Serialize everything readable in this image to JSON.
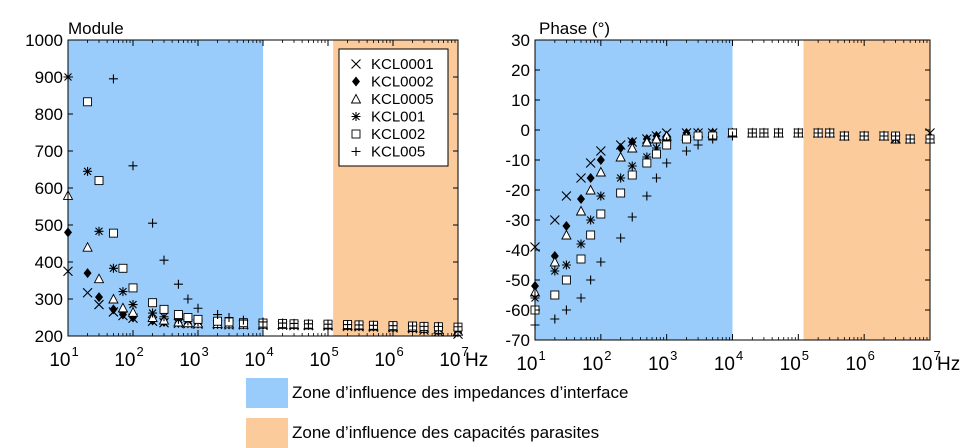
{
  "colors": {
    "interface_zone": "#99ccfb",
    "parasitic_zone": "#fbcb9b",
    "frame": "#000000",
    "marker": "#000000"
  },
  "zone_legend": [
    {
      "label": "Zone d’influence des impedances d’interface",
      "color": "#99ccfb",
      "from_hz": 10,
      "to_hz": 10000
    },
    {
      "label": "Zone d’influence des capacités parasites",
      "color": "#fbcb9b",
      "from_hz": 120000,
      "to_hz": 10000000
    }
  ],
  "chart_data": [
    {
      "type": "scatter",
      "title": "Module",
      "xlabel": "Hz",
      "ylabel": "",
      "xscale": "log",
      "xlim": [
        10,
        10000000
      ],
      "ylim": [
        200,
        1000
      ],
      "xticks": [
        {
          "exp": "1"
        },
        {
          "exp": "2"
        },
        {
          "exp": "3"
        },
        {
          "exp": "4"
        },
        {
          "exp": "5"
        },
        {
          "exp": "6"
        },
        {
          "exp": "7"
        }
      ],
      "yticks": [
        "200",
        "300",
        "400",
        "500",
        "600",
        "700",
        "800",
        "900",
        "1000"
      ],
      "legend_position": "top-right",
      "series": [
        {
          "name": "KCL0001",
          "marker": "x",
          "x": [
            10,
            20,
            30,
            50,
            70,
            100,
            200,
            300,
            500,
            700,
            1000,
            2000,
            3000,
            5000,
            10000,
            20000,
            30000,
            50000,
            100000,
            200000,
            300000,
            500000,
            1000000,
            2000000,
            3000000,
            5000000,
            10000000
          ],
          "y": [
            375,
            317,
            285,
            265,
            255,
            248,
            240,
            236,
            234,
            233,
            232,
            231,
            230,
            230,
            229,
            229,
            228,
            228,
            227,
            226,
            225,
            224,
            222,
            220,
            216,
            212,
            205
          ]
        },
        {
          "name": "KCL0002",
          "marker": "diamond",
          "x": [
            10,
            20,
            30,
            50,
            70,
            100,
            200,
            300,
            500,
            700,
            1000,
            2000,
            3000,
            5000,
            10000,
            20000,
            30000,
            50000,
            100000,
            200000,
            300000,
            500000,
            1000000,
            2000000,
            3000000,
            5000000,
            10000000
          ],
          "y": [
            480,
            370,
            305,
            272,
            258,
            250,
            242,
            238,
            235,
            234,
            233,
            232,
            231,
            231,
            230,
            230,
            229,
            229,
            228,
            227,
            226,
            225,
            223,
            221,
            218,
            214,
            210
          ]
        },
        {
          "name": "KCL0005",
          "marker": "triangle",
          "x": [
            10,
            20,
            30,
            50,
            70,
            100,
            200,
            300,
            500,
            700,
            1000,
            2000,
            3000,
            5000,
            10000,
            20000,
            30000,
            50000,
            100000,
            200000,
            300000,
            500000,
            1000000,
            2000000,
            3000000,
            5000000,
            10000000
          ],
          "y": [
            580,
            440,
            355,
            300,
            276,
            264,
            250,
            243,
            238,
            236,
            235,
            234,
            233,
            232,
            232,
            231,
            231,
            230,
            230,
            229,
            228,
            227,
            225,
            223,
            221,
            218,
            213
          ]
        },
        {
          "name": "KCL001",
          "marker": "asterisk",
          "x": [
            10,
            20,
            30,
            50,
            70,
            100,
            200,
            300,
            500,
            700,
            1000,
            2000,
            3000,
            5000,
            10000,
            20000,
            30000,
            50000,
            100000,
            200000,
            300000,
            500000,
            1000000,
            2000000,
            3000000,
            5000000,
            10000000
          ],
          "y": [
            900,
            645,
            483,
            383,
            320,
            285,
            262,
            252,
            245,
            241,
            239,
            237,
            235,
            234,
            233,
            233,
            232,
            231,
            231,
            230,
            229,
            228,
            226,
            224,
            222,
            219,
            215
          ]
        },
        {
          "name": "KCL002",
          "marker": "square",
          "x": [
            20,
            30,
            50,
            70,
            100,
            200,
            300,
            500,
            700,
            1000,
            2000,
            3000,
            5000,
            10000,
            20000,
            30000,
            50000,
            100000,
            200000,
            300000,
            500000,
            1000000,
            2000000,
            3000000,
            5000000,
            10000000
          ],
          "y": [
            833,
            620,
            478,
            383,
            330,
            290,
            272,
            258,
            250,
            245,
            240,
            238,
            236,
            235,
            234,
            233,
            232,
            232,
            231,
            230,
            229,
            228,
            227,
            226,
            225,
            224
          ]
        },
        {
          "name": "KCL005",
          "marker": "plus",
          "x": [
            50,
            100,
            200,
            300,
            500,
            700,
            1000,
            2000,
            3000,
            5000,
            10000,
            20000,
            30000,
            50000,
            100000,
            200000,
            300000,
            500000,
            1000000,
            2000000,
            3000000,
            5000000,
            10000000
          ],
          "y": [
            895,
            660,
            505,
            405,
            340,
            300,
            275,
            258,
            250,
            243,
            238,
            235,
            234,
            233,
            232,
            231,
            230,
            229,
            228,
            227,
            226,
            226,
            225
          ]
        }
      ]
    },
    {
      "type": "scatter",
      "title": "Phase (°)",
      "xlabel": "Hz",
      "ylabel": "",
      "xscale": "log",
      "xlim": [
        10,
        10000000
      ],
      "ylim": [
        -70,
        30
      ],
      "xticks": [
        {
          "exp": "1"
        },
        {
          "exp": "2"
        },
        {
          "exp": "3"
        },
        {
          "exp": "4"
        },
        {
          "exp": "5"
        },
        {
          "exp": "6"
        },
        {
          "exp": "7"
        }
      ],
      "yticks": [
        "-70",
        "-60",
        "-50",
        "-40",
        "-30",
        "-20",
        "-10",
        "0",
        "10",
        "20",
        "30"
      ],
      "legend_position": "none",
      "series": [
        {
          "name": "KCL0001",
          "marker": "x",
          "x": [
            10,
            20,
            30,
            50,
            70,
            100,
            200,
            300,
            500,
            700,
            1000,
            2000,
            3000,
            5000,
            10000,
            20000,
            30000,
            50000,
            100000,
            200000,
            300000,
            500000,
            1000000,
            2000000,
            3000000,
            5000000,
            10000000
          ],
          "y": [
            -39,
            -30,
            -22,
            -16,
            -11,
            -7,
            -5,
            -4,
            -3,
            -2,
            -1,
            -1,
            -1,
            -1,
            -1,
            -1,
            -1,
            -1,
            -1,
            -1,
            -1,
            -2,
            -2,
            -2,
            -3,
            -3,
            -1
          ]
        },
        {
          "name": "KCL0002",
          "marker": "diamond",
          "x": [
            10,
            20,
            30,
            50,
            70,
            100,
            200,
            300,
            500,
            700,
            1000,
            2000,
            3000,
            5000,
            10000,
            20000,
            30000,
            50000,
            100000,
            200000,
            300000,
            500000,
            1000000,
            2000000,
            3000000,
            5000000,
            10000000
          ],
          "y": [
            -52,
            -42,
            -32,
            -23,
            -16,
            -10,
            -6,
            -4,
            -3,
            -2,
            -2,
            -1,
            -1,
            -1,
            -1,
            -1,
            -1,
            -1,
            -1,
            -1,
            -1,
            -2,
            -2,
            -2,
            -3,
            -3,
            -3
          ]
        },
        {
          "name": "KCL0005",
          "marker": "triangle",
          "x": [
            10,
            20,
            30,
            50,
            70,
            100,
            200,
            300,
            500,
            700,
            1000,
            2000,
            3000,
            5000,
            10000,
            20000,
            30000,
            50000,
            100000,
            200000,
            300000,
            500000,
            1000000,
            2000000,
            3000000,
            5000000,
            10000000
          ],
          "y": [
            -54,
            -44,
            -35,
            -27,
            -20,
            -14,
            -9,
            -6,
            -4,
            -3,
            -2,
            -2,
            -1,
            -1,
            -1,
            -1,
            -1,
            -1,
            -1,
            -1,
            -1,
            -2,
            -2,
            -2,
            -3,
            -3,
            -3
          ]
        },
        {
          "name": "KCL001",
          "marker": "asterisk",
          "x": [
            10,
            20,
            30,
            50,
            70,
            100,
            200,
            300,
            500,
            700,
            1000,
            2000,
            3000,
            5000,
            10000,
            20000,
            30000,
            50000,
            100000,
            200000,
            300000,
            500000,
            1000000,
            2000000,
            3000000,
            5000000,
            10000000
          ],
          "y": [
            -56,
            -47,
            -45,
            -38,
            -30,
            -22,
            -16,
            -12,
            -9,
            -6,
            -4,
            -3,
            -2,
            -1,
            -1,
            -1,
            -1,
            -1,
            -1,
            -1,
            -1,
            -2,
            -2,
            -2,
            -3,
            -3,
            -3
          ]
        },
        {
          "name": "KCL002",
          "marker": "square",
          "x": [
            10,
            20,
            30,
            50,
            70,
            100,
            200,
            300,
            500,
            700,
            1000,
            2000,
            3000,
            5000,
            10000,
            20000,
            30000,
            50000,
            100000,
            200000,
            300000,
            500000,
            1000000,
            2000000,
            3000000,
            5000000,
            10000000
          ],
          "y": [
            -60,
            -55,
            -50,
            -43,
            -35,
            -28,
            -21,
            -15,
            -11,
            -8,
            -5,
            -3,
            -2,
            -2,
            -1,
            -1,
            -1,
            -1,
            -1,
            -1,
            -1,
            -2,
            -2,
            -2,
            -2,
            -3,
            -3
          ]
        },
        {
          "name": "KCL005",
          "marker": "plus",
          "x": [
            10,
            20,
            30,
            50,
            70,
            100,
            200,
            300,
            500,
            700,
            1000,
            2000,
            3000,
            5000,
            10000,
            20000,
            30000,
            50000,
            100000,
            200000,
            300000,
            500000,
            1000000,
            2000000,
            3000000,
            5000000,
            10000000
          ],
          "y": [
            -65,
            -63,
            -60,
            -56,
            -50,
            -44,
            -36,
            -29,
            -22,
            -16,
            -11,
            -7,
            -5,
            -3,
            -2,
            -1,
            -1,
            -1,
            -1,
            -1,
            -1,
            -2,
            -2,
            -2,
            -2,
            -3,
            -3
          ]
        }
      ]
    }
  ]
}
